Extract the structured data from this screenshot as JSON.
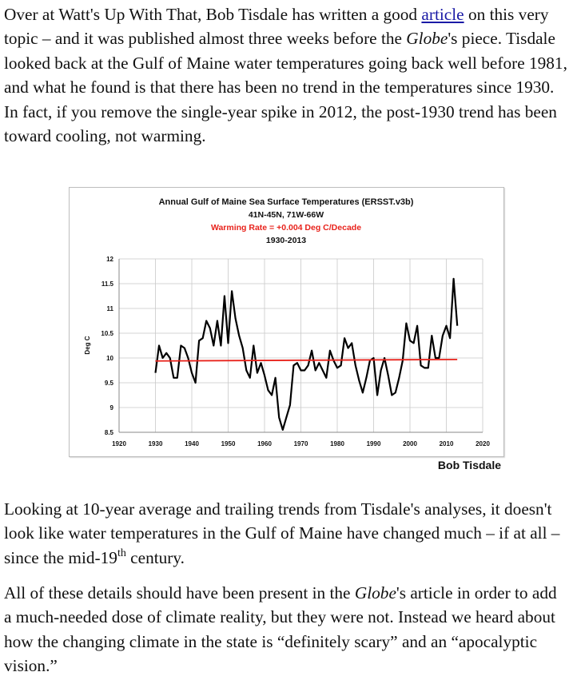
{
  "paragraph1": {
    "part1": "Over at Watt's Up With That, Bob Tisdale has written a good ",
    "link": "article",
    "part2": " on this very topic – and it was published almost three weeks before the ",
    "italic": "Globe",
    "part3": "'s piece.  Tisdale looked back at the Gulf of Maine water temperatures going back well before 1981, and what he found is that there has been no trend in the temperatures since 1930.  In fact, if you remove the single-year spike in 2012, the post-1930 trend has been toward cooling, not warming."
  },
  "paragraph2": {
    "part1": "Looking at 10-year average and trailing trends from Tisdale's analyses, it doesn't look like water temperatures in the Gulf of Maine have changed much – if at all – since the mid-19",
    "sup": "th",
    "part2": " century."
  },
  "paragraph3": {
    "part1": "All of these details should have been present in the ",
    "italic": "Globe",
    "part2": "'s article in order to add a much-needed dose of climate reality, but they were not.  Instead we heard about how the changing climate in the state is “definitely scary” and an “apocalyptic vision.”"
  },
  "figure_credit": "Bob Tisdale",
  "chart_data": {
    "type": "line",
    "title": "Annual Gulf of Maine Sea Surface Temperatures (ERSST.v3b)",
    "subtitle_lines": [
      "41N-45N, 71W-66W",
      "Warming Rate = +0.004 Deg C/Decade",
      "1930-2013"
    ],
    "ylabel": "Deg C",
    "xlabel": "",
    "xlim": [
      1920,
      2020
    ],
    "ylim": [
      8.5,
      12
    ],
    "x_ticks": [
      1920,
      1930,
      1940,
      1950,
      1960,
      1970,
      1980,
      1990,
      2000,
      2010,
      2020
    ],
    "y_ticks": [
      8.5,
      9,
      9.5,
      10,
      10.5,
      11,
      11.5,
      12
    ],
    "grid": true,
    "colors": {
      "series": "#000000",
      "trend": "#e8231c",
      "warming_rate_text": "#e8231c"
    },
    "series": [
      {
        "x": [
          1930,
          1931,
          1932,
          1933,
          1934,
          1935,
          1936,
          1937,
          1938,
          1939,
          1940,
          1941,
          1942,
          1943,
          1944,
          1945,
          1946,
          1947,
          1948,
          1949,
          1950,
          1951,
          1952,
          1953,
          1954,
          1955,
          1956,
          1957,
          1958,
          1959,
          1960,
          1961,
          1962,
          1963,
          1964,
          1965,
          1966,
          1967,
          1968,
          1969,
          1970,
          1971,
          1972,
          1973,
          1974,
          1975,
          1976,
          1977,
          1978,
          1979,
          1980,
          1981,
          1982,
          1983,
          1984,
          1985,
          1986,
          1987,
          1988,
          1989,
          1990,
          1991,
          1992,
          1993,
          1994,
          1995,
          1996,
          1997,
          1998,
          1999,
          2000,
          2001,
          2002,
          2003,
          2004,
          2005,
          2006,
          2007,
          2008,
          2009,
          2010,
          2011,
          2012,
          2013
        ],
        "values": [
          9.7,
          10.25,
          10.0,
          10.1,
          10.0,
          9.6,
          9.6,
          10.25,
          10.2,
          10.0,
          9.7,
          9.5,
          10.35,
          10.4,
          10.75,
          10.6,
          10.25,
          10.75,
          10.25,
          11.25,
          10.3,
          11.35,
          10.8,
          10.45,
          10.2,
          9.75,
          9.6,
          10.25,
          9.7,
          9.9,
          9.65,
          9.35,
          9.25,
          9.6,
          8.8,
          8.55,
          8.8,
          9.05,
          9.85,
          9.9,
          9.75,
          9.75,
          9.85,
          10.15,
          9.75,
          9.9,
          9.75,
          9.6,
          10.15,
          9.95,
          9.8,
          9.85,
          10.4,
          10.2,
          10.3,
          9.85,
          9.55,
          9.3,
          9.6,
          9.95,
          10.0,
          9.25,
          9.75,
          10.0,
          9.65,
          9.25,
          9.3,
          9.6,
          9.95,
          10.7,
          10.35,
          10.3,
          10.65,
          9.85,
          9.8,
          9.8,
          10.45,
          10.0,
          10.0,
          10.45,
          10.65,
          10.4,
          11.6,
          10.65
        ]
      },
      {
        "name": "trend",
        "x": [
          1930,
          2013
        ],
        "values": [
          9.94,
          9.97
        ]
      }
    ]
  }
}
